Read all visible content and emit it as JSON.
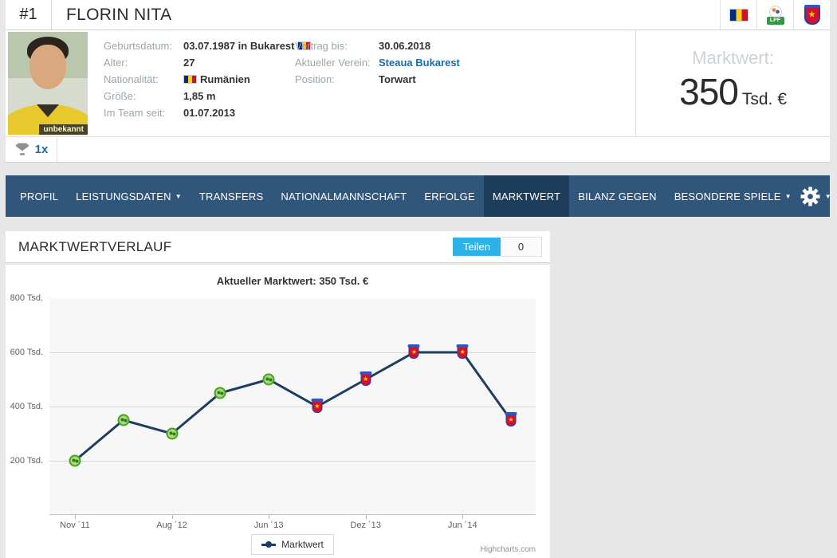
{
  "header": {
    "shirt_number": "#1",
    "player_name": "FLORIN NITA",
    "photo_label": "unbekannt",
    "icons": {
      "nation": "romania-flag",
      "league_badge_text": "LPF",
      "club": "steaua-bukarest-crest"
    }
  },
  "info": {
    "col1": [
      {
        "label": "Geburtsdatum:",
        "value": "03.07.1987 in Bukarest",
        "flag_after": true
      },
      {
        "label": "Alter:",
        "value": "27"
      },
      {
        "label": "Nationalität:",
        "value": "Rumänien",
        "flag_before": true
      },
      {
        "label": "Größe:",
        "value": "1,85 m"
      },
      {
        "label": "Im Team seit:",
        "value": "01.07.2013"
      }
    ],
    "col2": [
      {
        "label": "Vertrag bis:",
        "value": "30.06.2018"
      },
      {
        "label": "Aktueller Verein:",
        "value": "Steaua Bukarest",
        "link": true
      },
      {
        "label": "Position:",
        "value": "Torwart"
      }
    ],
    "marktwert_label": "Marktwert:",
    "marktwert_value": "350",
    "marktwert_unit": "Tsd. €"
  },
  "trophies": {
    "count": "1x"
  },
  "nav": {
    "items": [
      {
        "label": "PROFIL"
      },
      {
        "label": "LEISTUNGSDATEN",
        "dropdown": true
      },
      {
        "label": "TRANSFERS"
      },
      {
        "label": "NATIONALMANNSCHAFT"
      },
      {
        "label": "ERFOLGE"
      },
      {
        "label": "MARKTWERT",
        "active": true
      },
      {
        "label": "BILANZ GEGEN"
      },
      {
        "label": "BESONDERE SPIELE",
        "dropdown": true
      }
    ]
  },
  "section": {
    "title": "MARKTWERTVERLAUF",
    "share_button": "Teilen",
    "share_count": "0"
  },
  "chart_data": {
    "type": "line",
    "title": "Aktueller Marktwert: 350 Tsd. €",
    "ylim": [
      0,
      800
    ],
    "y_unit": "Tsd. €",
    "y_ticks": [
      {
        "value": 800,
        "label": "800 Tsd."
      },
      {
        "value": 600,
        "label": "600 Tsd."
      },
      {
        "value": 400,
        "label": "400 Tsd."
      },
      {
        "value": 200,
        "label": "200 Tsd."
      }
    ],
    "series": [
      {
        "name": "Marktwert",
        "points": [
          {
            "value": 200,
            "marker": "green-club-badge"
          },
          {
            "value": 350,
            "marker": "green-club-badge"
          },
          {
            "value": 300,
            "marker": "green-club-badge"
          },
          {
            "value": 450,
            "marker": "green-club-badge"
          },
          {
            "value": 500,
            "marker": "green-club-badge"
          },
          {
            "value": 400,
            "marker": "steaua-crest"
          },
          {
            "value": 500,
            "marker": "steaua-crest"
          },
          {
            "value": 600,
            "marker": "steaua-crest"
          },
          {
            "value": 600,
            "marker": "steaua-crest"
          },
          {
            "value": 350,
            "marker": "steaua-crest"
          }
        ]
      }
    ],
    "x_ticks": [
      {
        "label": "Nov ´11",
        "point_index": 0
      },
      {
        "label": "Aug ´12",
        "point_index": 2
      },
      {
        "label": "Jun ´13",
        "point_index": 4
      },
      {
        "label": "Dez ´13",
        "point_index": 6
      },
      {
        "label": "Jun ´14",
        "point_index": 8
      }
    ],
    "legend": "Marktwert",
    "legend_position": "bottom-center",
    "grid": true,
    "credit": "Highcharts.com"
  },
  "colors": {
    "nav_bg": "#31567b",
    "nav_active_bg": "#1d3d5b",
    "accent_blue": "#2cb2e8",
    "link_blue": "#1c6aa6",
    "line_navy": "#1d3e63",
    "green_marker": "#46a31f",
    "steaua_red": "#d21034",
    "steaua_blue": "#1e43a0"
  }
}
